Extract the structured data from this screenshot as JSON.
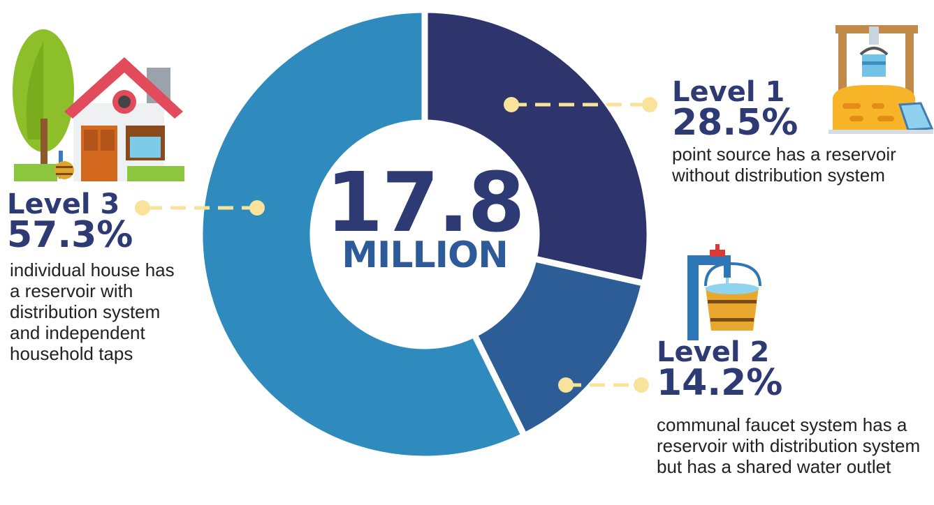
{
  "chart_data": {
    "type": "pie",
    "donut": true,
    "categories": [
      "Level 1",
      "Level 2",
      "Level 3"
    ],
    "values": [
      28.5,
      14.2,
      57.3
    ],
    "colors": [
      "#2e356d",
      "#2d5d96",
      "#2f8bbd"
    ],
    "center_value": "17.8",
    "center_unit": "MILLION",
    "labels": [
      {
        "level": "Level 1",
        "percent": "28.5%",
        "description": "point source has a reservoir without distribution system"
      },
      {
        "level": "Level 2",
        "percent": "14.2%",
        "description": "communal faucet system has a reservoir with distribution system but has a shared water outlet"
      },
      {
        "level": "Level 3",
        "percent": "57.3%",
        "description": "individual house has a reservoir with distribution system and independent household taps"
      }
    ]
  },
  "icons": {
    "level1": "water-well-icon",
    "level2": "faucet-bucket-icon",
    "level3": "house-icon"
  },
  "connector_color": "#f9e39b"
}
